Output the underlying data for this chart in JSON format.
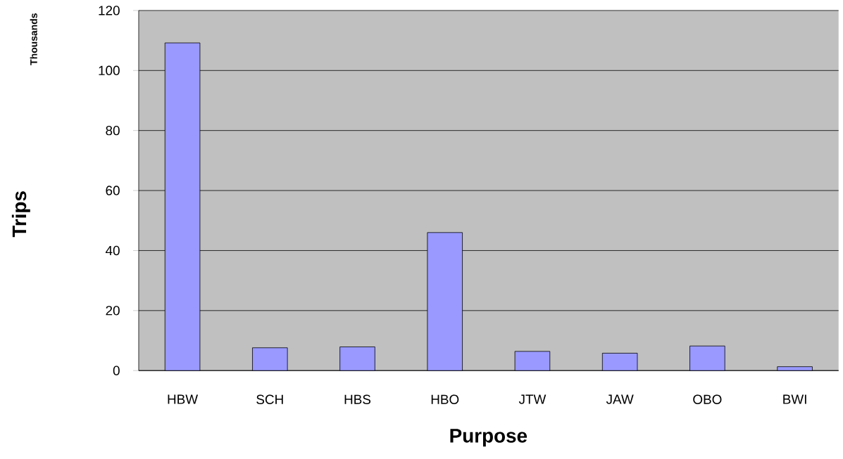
{
  "chart_data": {
    "type": "bar",
    "xlabel": "Purpose",
    "ylabel": "Trips",
    "annotations": [
      "Thousands"
    ],
    "categories": [
      "HBW",
      "SCH",
      "HBS",
      "HBO",
      "JTW",
      "JAW",
      "OBO",
      "BWI"
    ],
    "values": [
      109.2,
      7.6,
      7.9,
      46.0,
      6.4,
      5.8,
      8.2,
      1.3
    ],
    "color": "#9999ff",
    "ylim": [
      0,
      120
    ],
    "yticks": [
      0,
      20,
      40,
      60,
      80,
      100,
      120
    ],
    "grid": "y"
  }
}
